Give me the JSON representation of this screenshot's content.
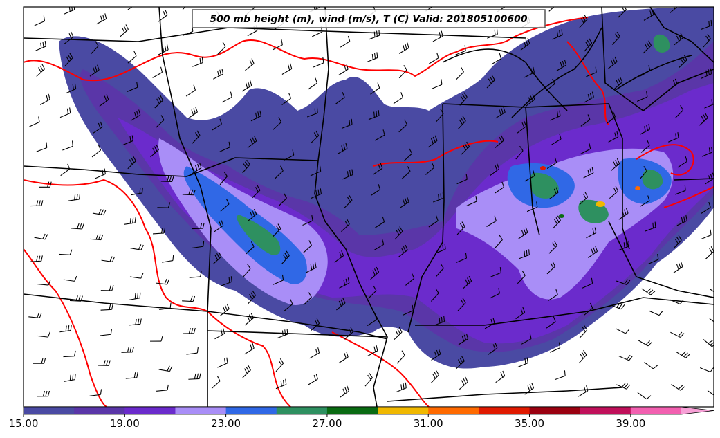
{
  "title": "500 mb height (m), wind (m/s), T (C) Valid: 201805100600",
  "colorbar": {
    "bins": [
      {
        "lo": 15,
        "hi": 17,
        "color": "#4a4aa3"
      },
      {
        "lo": 17,
        "hi": 19,
        "color": "#5a36a8"
      },
      {
        "lo": 19,
        "hi": 21,
        "color": "#6b2bcc"
      },
      {
        "lo": 21,
        "hi": 23,
        "color": "#a98ef7"
      },
      {
        "lo": 23,
        "hi": 25,
        "color": "#3068e6"
      },
      {
        "lo": 25,
        "hi": 27,
        "color": "#2e9060"
      },
      {
        "lo": 27,
        "hi": 29,
        "color": "#0a6b12"
      },
      {
        "lo": 29,
        "hi": 31,
        "color": "#f0b800"
      },
      {
        "lo": 31,
        "hi": 33,
        "color": "#ff6a00"
      },
      {
        "lo": 33,
        "hi": 35,
        "color": "#e01a00"
      },
      {
        "lo": 35,
        "hi": 37,
        "color": "#9a0010"
      },
      {
        "lo": 37,
        "hi": 39,
        "color": "#c0105a"
      },
      {
        "lo": 39,
        "hi": 41,
        "color": "#f260b0"
      }
    ],
    "extend_color": "#f7a0d6",
    "ticks": [
      "15.00",
      "19.00",
      "23.00",
      "27.00",
      "31.00",
      "35.00",
      "39.00"
    ]
  },
  "styles": {
    "contour_color": "#ff0000",
    "boundary_color": "#000000"
  }
}
